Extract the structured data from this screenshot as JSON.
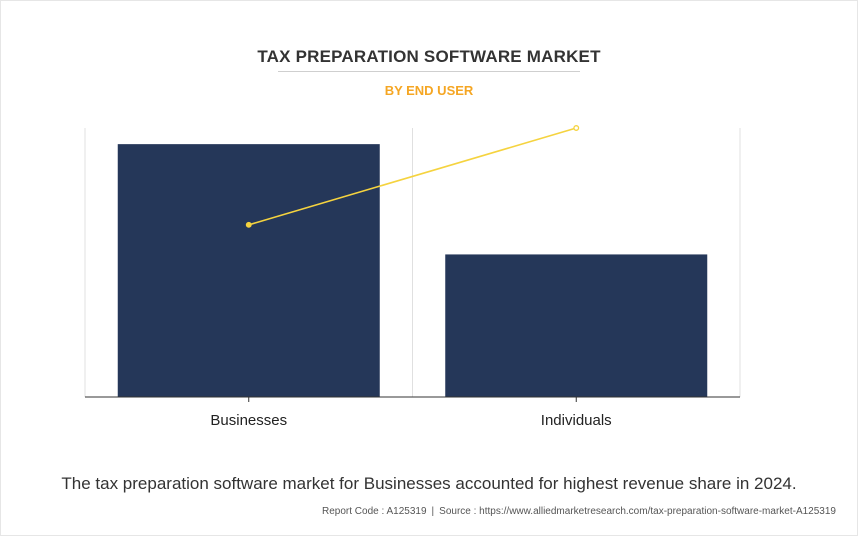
{
  "header": {
    "title": "TAX PREPARATION SOFTWARE MARKET",
    "subtitle": "BY END USER"
  },
  "caption": "The tax preparation software market for Businesses accounted for highest revenue share in 2024.",
  "footer": {
    "report_code": "Report Code : A125319",
    "separator": "|",
    "source": "Source : https://www.alliedmarketresearch.com/tax-preparation-software-market-A125319"
  },
  "colors": {
    "bar": "#253759",
    "line": "#f5d33f",
    "subtitle": "#f5a623",
    "grid": "#e0e0e0",
    "axis": "#333333"
  },
  "chart_data": {
    "type": "bar",
    "categories": [
      "Businesses",
      "Individuals"
    ],
    "series": [
      {
        "type": "bar",
        "values": [
          94,
          53
        ]
      },
      {
        "type": "line",
        "values": [
          64,
          100
        ]
      }
    ],
    "ylim": [
      0,
      100
    ],
    "xlabel": "",
    "ylabel": "",
    "grid": true,
    "legend": "none"
  }
}
